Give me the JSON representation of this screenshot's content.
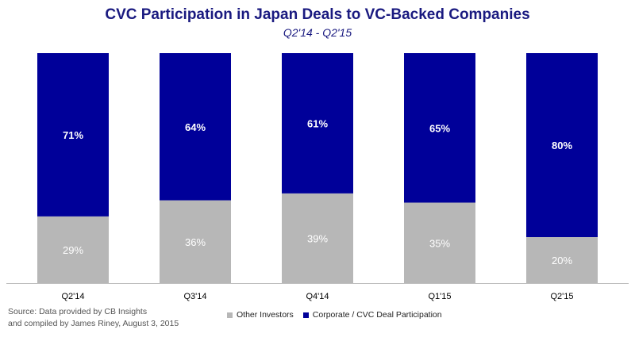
{
  "chart_data": {
    "type": "bar",
    "stacked": true,
    "title": "CVC Participation in Japan Deals to VC-Backed Companies",
    "subtitle": "Q2'14 - Q2'15",
    "categories": [
      "Q2'14",
      "Q3'14",
      "Q4'14",
      "Q1'15",
      "Q2'15"
    ],
    "series": [
      {
        "name": "Other Investors",
        "color": "#b7b7b7",
        "values": [
          29,
          36,
          39,
          35,
          20
        ],
        "labels": [
          "29%",
          "36%",
          "39%",
          "35%",
          "20%"
        ]
      },
      {
        "name": "Corporate / CVC Deal Participation",
        "color": "#000099",
        "values": [
          71,
          64,
          61,
          65,
          80
        ],
        "labels": [
          "71%",
          "64%",
          "61%",
          "65%",
          "80%"
        ]
      }
    ],
    "ylim": [
      0,
      100
    ],
    "grid": false,
    "legend_position": "bottom"
  },
  "source": {
    "line1": "Source: Data provided by CB Insights",
    "line2": "and compiled by James Riney, August 3, 2015"
  }
}
